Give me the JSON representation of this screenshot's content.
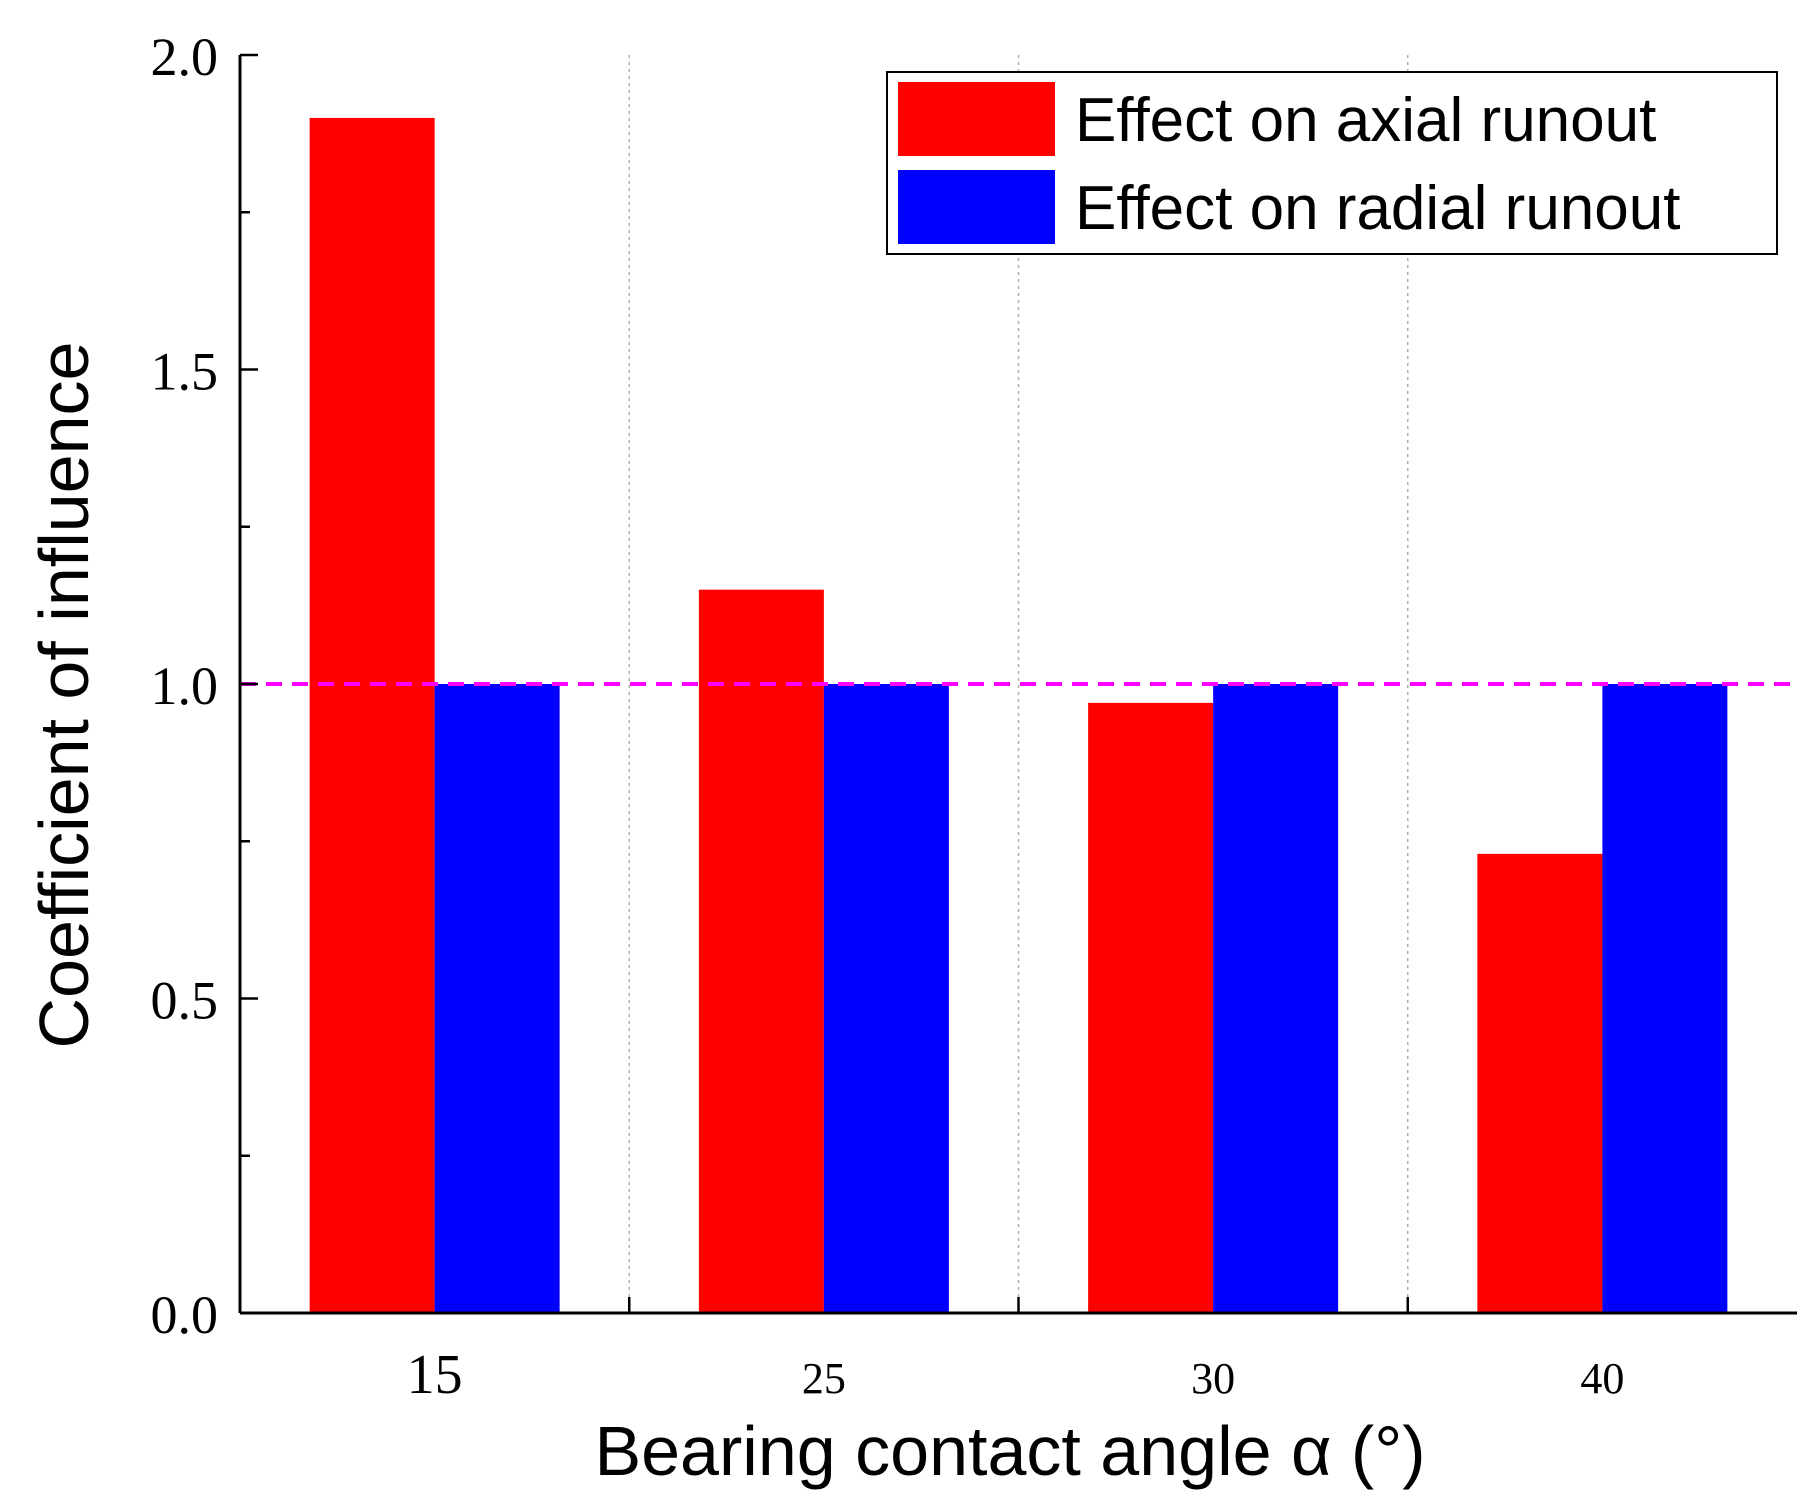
{
  "chart_data": {
    "type": "bar",
    "categories": [
      "15",
      "25",
      "30",
      "40"
    ],
    "series": [
      {
        "name": "Effect on axial runout",
        "color": "#ff0000",
        "values": [
          1.9,
          1.15,
          0.97,
          0.73
        ]
      },
      {
        "name": "Effect on radial runout",
        "color": "#0000ff",
        "values": [
          1.0,
          1.0,
          1.0,
          1.0
        ]
      }
    ],
    "title": "",
    "xlabel": "Bearing contact angle α (°)",
    "ylabel": "Coefficient of influence",
    "ylim": [
      0,
      2.0
    ],
    "yticks": [
      "0.0",
      "0.5",
      "1.0",
      "1.5",
      "2.0"
    ],
    "reference_line": {
      "y": 1.0,
      "color": "#ff00ff",
      "style": "dashed"
    },
    "legend": {
      "position": "top-right"
    },
    "grid": {
      "x": true,
      "y": false,
      "style": "dotted"
    }
  }
}
